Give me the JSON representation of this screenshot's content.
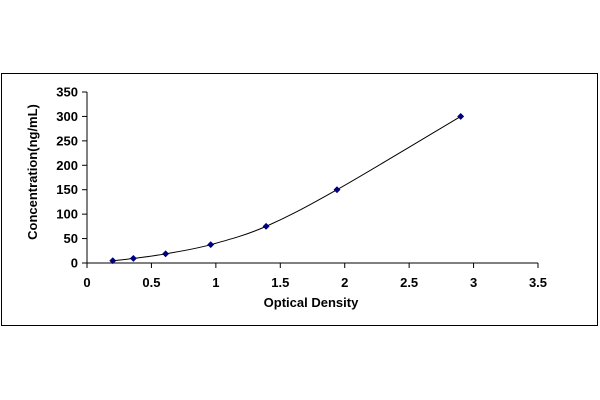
{
  "chart_data": {
    "type": "scatter",
    "title": "",
    "xlabel": "Optical Density",
    "ylabel": "Concentration(ng/mL)",
    "xlim": [
      0,
      3.5
    ],
    "ylim": [
      0,
      350
    ],
    "x_ticks": [
      "0",
      "0.5",
      "1",
      "1.5",
      "2",
      "2.5",
      "3",
      "3.5"
    ],
    "y_ticks": [
      "0",
      "50",
      "100",
      "150",
      "200",
      "250",
      "300",
      "350"
    ],
    "x_tick_values": [
      0,
      0.5,
      1,
      1.5,
      2,
      2.5,
      3,
      3.5
    ],
    "y_tick_values": [
      0,
      50,
      100,
      150,
      200,
      250,
      300,
      350
    ],
    "grid": false,
    "legend": "none",
    "series": [
      {
        "x": [
          0.2,
          0.36,
          0.61,
          0.96,
          1.39,
          1.94,
          2.9
        ],
        "y": [
          4.69,
          9.38,
          18.75,
          37.5,
          75,
          150,
          300
        ],
        "marker": "diamond",
        "line": "smooth",
        "color": "#00007f"
      }
    ],
    "colors": {
      "line": "#000000",
      "marker": "#00007f",
      "frame": "#000000"
    }
  }
}
